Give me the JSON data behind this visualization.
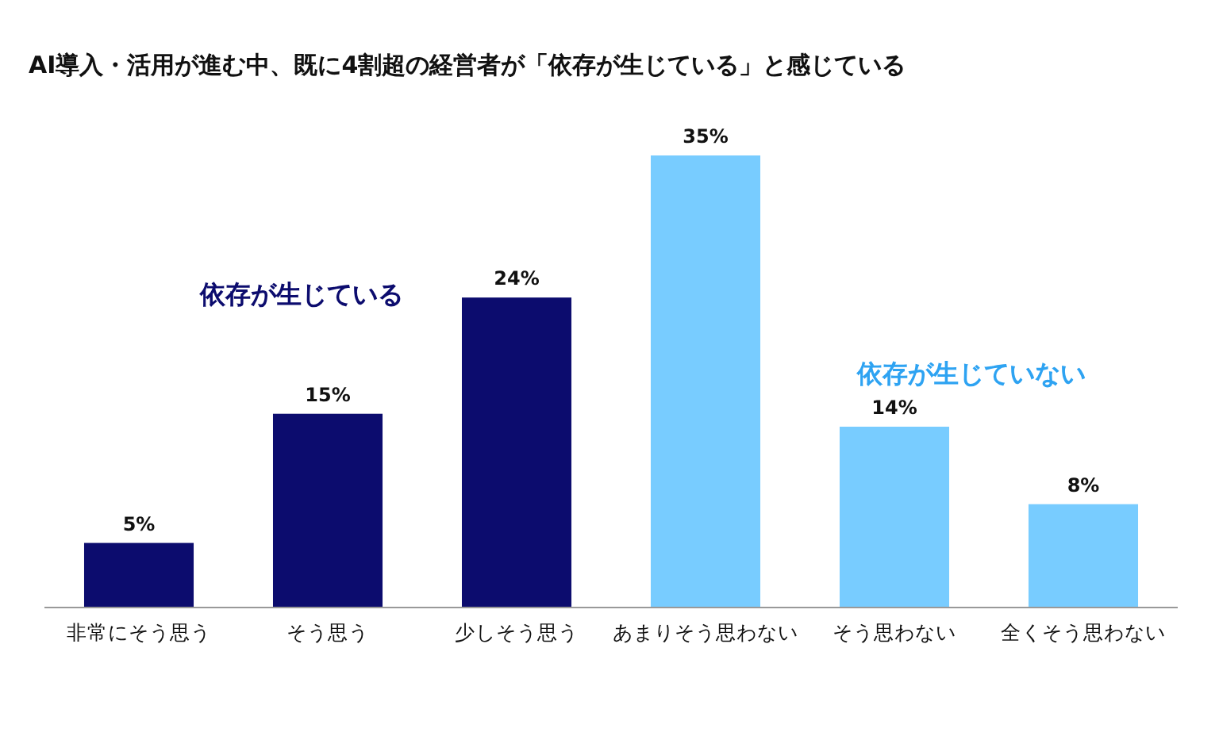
{
  "chart_data": {
    "type": "bar",
    "title": "AI導入・活用が進む中、既に4割超の経営者が「依存が生じている」と感じている",
    "categories": [
      "非常にそう思う",
      "そう思う",
      "少しそう思う",
      "あまりそう思わない",
      "そう思わない",
      "全くそう思わない"
    ],
    "values": [
      5,
      15,
      24,
      35,
      14,
      8
    ],
    "colors": [
      "#0c0c6e",
      "#0c0c6e",
      "#0c0c6e",
      "#78ccff",
      "#78ccff",
      "#78ccff"
    ],
    "value_labels": [
      "5%",
      "15%",
      "24%",
      "35%",
      "14%",
      "8%"
    ],
    "annotations": [
      "依存が生じている",
      "依存が生じていない"
    ]
  }
}
